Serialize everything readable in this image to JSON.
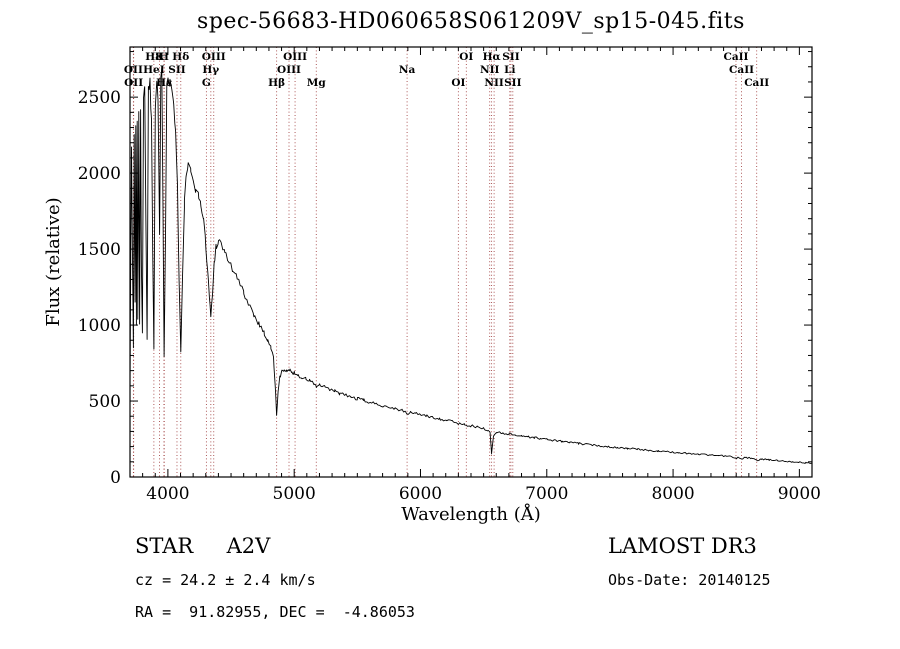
{
  "footer": {
    "classification": "STAR     A2V",
    "velocity": "cz = 24.2 ± 2.4 km/s",
    "coordinates": "RA =  91.82955, DEC =  -4.86053",
    "survey": "LAMOST DR3",
    "obs_date": "Obs-Date: 20140125"
  },
  "colors": {
    "spectrum_line": "#000000",
    "spectral_marker": "#9b3434",
    "background": "#ffffff",
    "text": "#000000"
  },
  "chart_data": {
    "type": "line",
    "title": "spec-56683-HD060658S061209V_sp15-045.fits",
    "xlabel": "Wavelength (Å)",
    "ylabel": "Flux (relative)",
    "xlim": [
      3700,
      9100
    ],
    "ylim": [
      0,
      2830
    ],
    "xticks": [
      4000,
      5000,
      6000,
      7000,
      8000,
      9000
    ],
    "yticks": [
      0,
      500,
      1000,
      1500,
      2000,
      2500
    ],
    "grid": false,
    "legend": "none",
    "line_color": "#000000",
    "marker_color": "#9b3434",
    "series": [
      {
        "name": "LAMOST spectrum flux",
        "points": [
          [
            3700,
            600
          ],
          [
            3706,
            1500
          ],
          [
            3712,
            2150
          ],
          [
            3719,
            1500
          ],
          [
            3727,
            850
          ],
          [
            3733,
            2250
          ],
          [
            3740,
            1150
          ],
          [
            3746,
            2300
          ],
          [
            3751,
            1000
          ],
          [
            3757,
            2350
          ],
          [
            3762,
            1050
          ],
          [
            3770,
            2400
          ],
          [
            3776,
            1000
          ],
          [
            3784,
            2450
          ],
          [
            3790,
            1400
          ],
          [
            3798,
            950
          ],
          [
            3807,
            2500
          ],
          [
            3816,
            2550
          ],
          [
            3826,
            1700
          ],
          [
            3835,
            900
          ],
          [
            3846,
            2550
          ],
          [
            3858,
            2600
          ],
          [
            3870,
            2350
          ],
          [
            3880,
            1500
          ],
          [
            3889,
            850
          ],
          [
            3900,
            2450
          ],
          [
            3912,
            2620
          ],
          [
            3922,
            2500
          ],
          [
            3934,
            1600
          ],
          [
            3944,
            2600
          ],
          [
            3952,
            2650
          ],
          [
            3961,
            1800
          ],
          [
            3970,
            800
          ],
          [
            3981,
            1600
          ],
          [
            3991,
            2600
          ],
          [
            4001,
            2650
          ],
          [
            4016,
            2600
          ],
          [
            4031,
            2550
          ],
          [
            4046,
            2450
          ],
          [
            4061,
            2300
          ],
          [
            4076,
            1900
          ],
          [
            4089,
            1300
          ],
          [
            4102,
            820
          ],
          [
            4116,
            1300
          ],
          [
            4131,
            1800
          ],
          [
            4146,
            2000
          ],
          [
            4161,
            2050
          ],
          [
            4181,
            2000
          ],
          [
            4201,
            1950
          ],
          [
            4221,
            1900
          ],
          [
            4241,
            1850
          ],
          [
            4261,
            1800
          ],
          [
            4281,
            1700
          ],
          [
            4301,
            1520
          ],
          [
            4316,
            1350
          ],
          [
            4329,
            1180
          ],
          [
            4340,
            1060
          ],
          [
            4353,
            1200
          ],
          [
            4366,
            1400
          ],
          [
            4381,
            1520
          ],
          [
            4401,
            1560
          ],
          [
            4421,
            1540
          ],
          [
            4451,
            1480
          ],
          [
            4481,
            1420
          ],
          [
            4511,
            1370
          ],
          [
            4541,
            1320
          ],
          [
            4571,
            1270
          ],
          [
            4601,
            1210
          ],
          [
            4641,
            1140
          ],
          [
            4681,
            1070
          ],
          [
            4721,
            1010
          ],
          [
            4761,
            950
          ],
          [
            4791,
            900
          ],
          [
            4816,
            850
          ],
          [
            4836,
            780
          ],
          [
            4849,
            620
          ],
          [
            4861,
            400
          ],
          [
            4873,
            560
          ],
          [
            4886,
            660
          ],
          [
            4901,
            690
          ],
          [
            4921,
            710
          ],
          [
            4941,
            705
          ],
          [
            4961,
            700
          ],
          [
            4981,
            690
          ],
          [
            5001,
            685
          ],
          [
            5031,
            670
          ],
          [
            5061,
            655
          ],
          [
            5091,
            645
          ],
          [
            5121,
            635
          ],
          [
            5156,
            615
          ],
          [
            5176,
            595
          ],
          [
            5201,
            605
          ],
          [
            5241,
            590
          ],
          [
            5281,
            575
          ],
          [
            5321,
            565
          ],
          [
            5361,
            550
          ],
          [
            5401,
            540
          ],
          [
            5451,
            525
          ],
          [
            5501,
            515
          ],
          [
            5551,
            505
          ],
          [
            5601,
            490
          ],
          [
            5651,
            480
          ],
          [
            5701,
            470
          ],
          [
            5751,
            460
          ],
          [
            5801,
            450
          ],
          [
            5851,
            440
          ],
          [
            5894,
            415
          ],
          [
            5921,
            425
          ],
          [
            5961,
            420
          ],
          [
            6001,
            412
          ],
          [
            6051,
            400
          ],
          [
            6101,
            392
          ],
          [
            6151,
            383
          ],
          [
            6201,
            374
          ],
          [
            6251,
            366
          ],
          [
            6301,
            352
          ],
          [
            6351,
            345
          ],
          [
            6401,
            337
          ],
          [
            6451,
            328
          ],
          [
            6501,
            318
          ],
          [
            6531,
            310
          ],
          [
            6551,
            290
          ],
          [
            6563,
            155
          ],
          [
            6578,
            270
          ],
          [
            6601,
            295
          ],
          [
            6651,
            290
          ],
          [
            6701,
            283
          ],
          [
            6751,
            277
          ],
          [
            6801,
            271
          ],
          [
            6851,
            265
          ],
          [
            6901,
            259
          ],
          [
            6951,
            253
          ],
          [
            7001,
            248
          ],
          [
            7061,
            241
          ],
          [
            7121,
            234
          ],
          [
            7181,
            228
          ],
          [
            7251,
            221
          ],
          [
            7321,
            214
          ],
          [
            7401,
            207
          ],
          [
            7481,
            200
          ],
          [
            7561,
            194
          ],
          [
            7641,
            188
          ],
          [
            7721,
            182
          ],
          [
            7801,
            176
          ],
          [
            7881,
            170
          ],
          [
            7961,
            165
          ],
          [
            8041,
            160
          ],
          [
            8121,
            155
          ],
          [
            8201,
            150
          ],
          [
            8281,
            146
          ],
          [
            8361,
            141
          ],
          [
            8441,
            137
          ],
          [
            8498,
            122
          ],
          [
            8521,
            130
          ],
          [
            8542,
            118
          ],
          [
            8571,
            128
          ],
          [
            8621,
            124
          ],
          [
            8662,
            108
          ],
          [
            8701,
            118
          ],
          [
            8761,
            113
          ],
          [
            8821,
            109
          ],
          [
            8881,
            105
          ],
          [
            8941,
            101
          ],
          [
            9001,
            97
          ],
          [
            9051,
            93
          ],
          [
            9100,
            90
          ]
        ]
      }
    ],
    "spectral_line_rows": [
      [
        {
          "label": "H8",
          "wl": 3889
        },
        {
          "label": "K",
          "wl": 3934
        },
        {
          "label": "H",
          "wl": 3969
        },
        {
          "label": "Hδ",
          "wl": 4102
        },
        {
          "label": "OIII",
          "wl": 4363
        },
        {
          "label": "OIII",
          "wl": 5007
        },
        {
          "label": "OI",
          "wl": 6363
        },
        {
          "label": "Hα",
          "wl": 6563
        },
        {
          "label": "SII",
          "wl": 6716
        },
        {
          "label": "CaII",
          "wl": 8498
        }
      ],
      [
        {
          "label": "OII",
          "wl": 3727
        },
        {
          "label": "HeI",
          "wl": 3889
        },
        {
          "label": "SII",
          "wl": 4072
        },
        {
          "label": "Hγ",
          "wl": 4340
        },
        {
          "label": "OIII",
          "wl": 4959
        },
        {
          "label": "Na",
          "wl": 5894
        },
        {
          "label": "NII",
          "wl": 6548
        },
        {
          "label": "Li",
          "wl": 6707
        },
        {
          "label": "CaII",
          "wl": 8542
        }
      ],
      [
        {
          "label": "OII",
          "wl": 3729
        },
        {
          "label": "Hε",
          "wl": 3971
        },
        {
          "label": "G",
          "wl": 4305
        },
        {
          "label": "Hβ",
          "wl": 4861
        },
        {
          "label": "Mg",
          "wl": 5175
        },
        {
          "label": "OI",
          "wl": 6300
        },
        {
          "label": "NII",
          "wl": 6583
        },
        {
          "label": "SII",
          "wl": 6731
        },
        {
          "label": "CaII",
          "wl": 8662
        }
      ]
    ]
  }
}
